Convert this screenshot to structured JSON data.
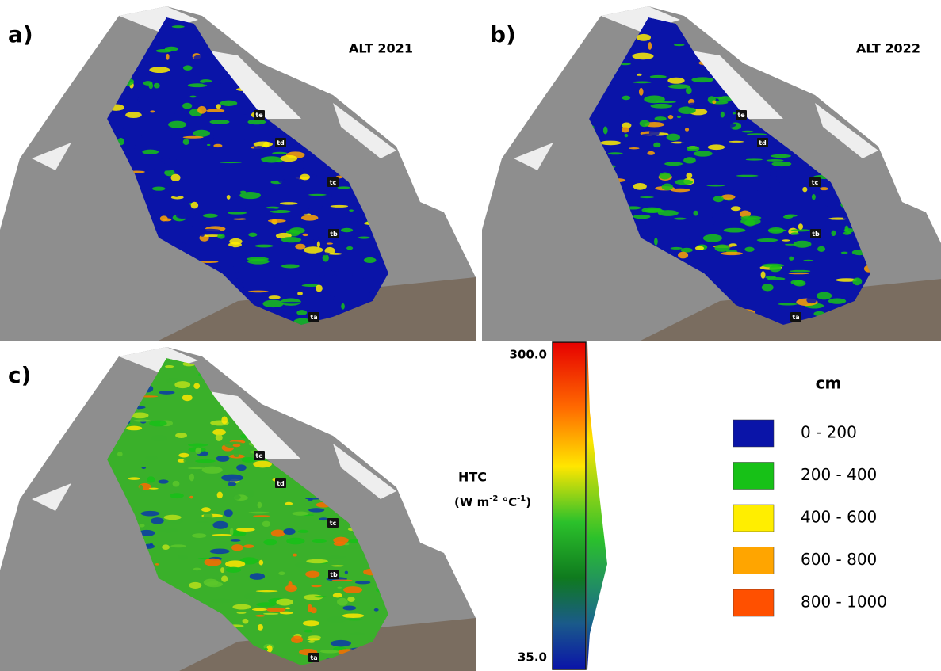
{
  "panels": [
    {
      "label": "a)",
      "title": "ALT 2021",
      "sites": [
        "te",
        "td",
        "tc",
        "tb",
        "ta"
      ]
    },
    {
      "label": "b)",
      "title": "ALT 2022",
      "sites": [
        "te",
        "td",
        "tc",
        "tb",
        "ta"
      ]
    },
    {
      "label": "c)",
      "sites": [
        "te",
        "td",
        "tc",
        "tb",
        "ta"
      ]
    }
  ],
  "colorbar": {
    "max": "300.0",
    "min": "35.0",
    "label": {
      "name": "HTC",
      "unit": "(W m",
      "exp1": "-2",
      "unit2": " °C",
      "exp2": "-1",
      "close": ")"
    }
  },
  "legend": {
    "title": "cm",
    "items": [
      {
        "label": "0 - 200",
        "color": "#0a14a8"
      },
      {
        "label": "200 - 400",
        "color": "#17c117"
      },
      {
        "label": "400 - 600",
        "color": "#ffee00"
      },
      {
        "label": "600 - 800",
        "color": "#ffa500"
      },
      {
        "label": "800 - 1000",
        "color": "#ff5000"
      }
    ]
  }
}
